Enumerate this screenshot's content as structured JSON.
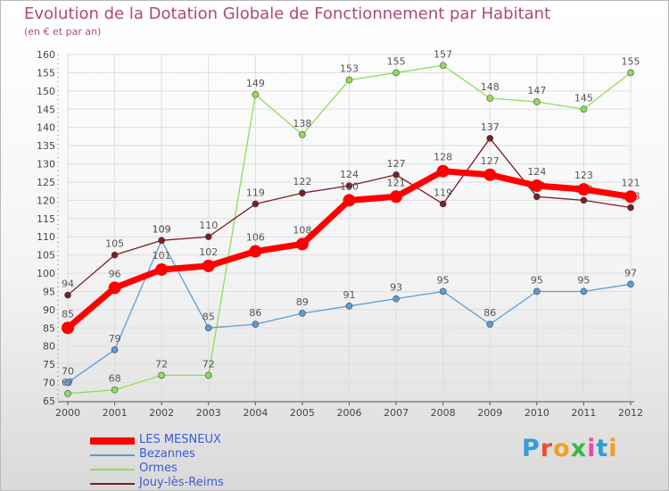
{
  "title": "Evolution de la Dotation Globale de Fonctionnement par Habitant",
  "subtitle": "(en € et par an)",
  "logo": {
    "text": "Proxiti",
    "letter_colors": [
      "#2b9fd8",
      "#e8502e",
      "#f0a020",
      "#3bb34a",
      "#e64da0",
      "#2b9fd8",
      "#f0a020"
    ]
  },
  "colors": {
    "title": "#b0487a",
    "axis_labels": "#444444",
    "legend_text": "#3a5bd6",
    "grid": "#dddddd"
  },
  "chart_data": {
    "type": "line",
    "x": [
      "2000",
      "2001",
      "2002",
      "2003",
      "2004",
      "2005",
      "2006",
      "2007",
      "2008",
      "2009",
      "2010",
      "2011",
      "2012"
    ],
    "ylim": [
      65,
      160
    ],
    "yticks": [
      65,
      70,
      75,
      80,
      85,
      90,
      95,
      100,
      105,
      110,
      115,
      120,
      125,
      130,
      135,
      140,
      145,
      150,
      155,
      160
    ],
    "grid": true,
    "legend_position": "bottom-left",
    "series": [
      {
        "name": "Ormes",
        "color": "#8fdc5a",
        "emphasis": false,
        "values": [
          67,
          68,
          72,
          72,
          149,
          138,
          153,
          155,
          157,
          148,
          147,
          145,
          155
        ]
      },
      {
        "name": "Bezannes",
        "color": "#5d9cd4",
        "emphasis": false,
        "values": [
          70,
          79,
          109,
          85,
          86,
          89,
          91,
          93,
          95,
          86,
          95,
          95,
          97
        ]
      },
      {
        "name": "Jouy-lès-Reims",
        "color": "#7a1e22",
        "emphasis": false,
        "values": [
          94,
          105,
          109,
          110,
          119,
          122,
          124,
          127,
          119,
          137,
          121,
          120,
          118
        ]
      },
      {
        "name": "LES MESNEUX",
        "color": "#ff0000",
        "emphasis": true,
        "values": [
          85,
          96,
          101,
          102,
          106,
          108,
          120,
          121,
          128,
          127,
          124,
          123,
          121
        ]
      }
    ],
    "legend_order": [
      "LES MESNEUX",
      "Bezannes",
      "Ormes",
      "Jouy-lès-Reims"
    ]
  }
}
